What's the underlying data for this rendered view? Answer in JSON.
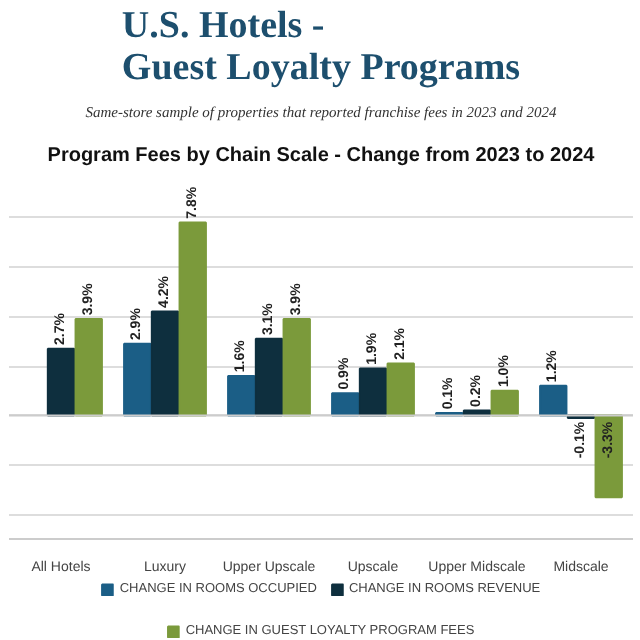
{
  "chart_data": {
    "type": "bar",
    "title": "U.S. Hotels -\nGuest Loyalty Programs",
    "subtitle": "Program Fees by Chain Scale - Change from 2023 to 2024",
    "annotations": [
      "Same-store sample of properties that reported franchise fees in 2023 and 2024"
    ],
    "categories": [
      "All Hotels",
      "Luxury",
      "Upper Upscale",
      "Upscale",
      "Upper Midscale",
      "Midscale"
    ],
    "series": [
      {
        "name": "CHANGE IN ROOMS OCCUPIED",
        "color": "#1b5e86",
        "values": [
          null,
          2.9,
          1.6,
          0.9,
          0.1,
          1.2
        ],
        "value_labels": [
          null,
          "2.9%",
          "1.6%",
          "0.9%",
          "0.1%",
          "1.2%"
        ]
      },
      {
        "name": "CHANGE IN ROOMS REVENUE",
        "color": "#0e2f3e",
        "values": [
          2.7,
          4.2,
          3.1,
          1.9,
          0.2,
          -0.1
        ],
        "value_labels": [
          "2.7%",
          "4.2%",
          "3.1%",
          "1.9%",
          "0.2%",
          "-0.1%"
        ]
      },
      {
        "name": "CHANGE IN GUEST LOYALTY PROGRAM FEES",
        "color": "#7b9a3b",
        "values": [
          3.9,
          7.8,
          3.9,
          2.1,
          1.0,
          -3.3
        ],
        "value_labels": [
          "3.9%",
          "7.8%",
          "3.9%",
          "2.1%",
          "1.0%",
          "-3.3%"
        ]
      }
    ],
    "grid": "y",
    "tick_labels": "x",
    "legend": "bottom"
  }
}
